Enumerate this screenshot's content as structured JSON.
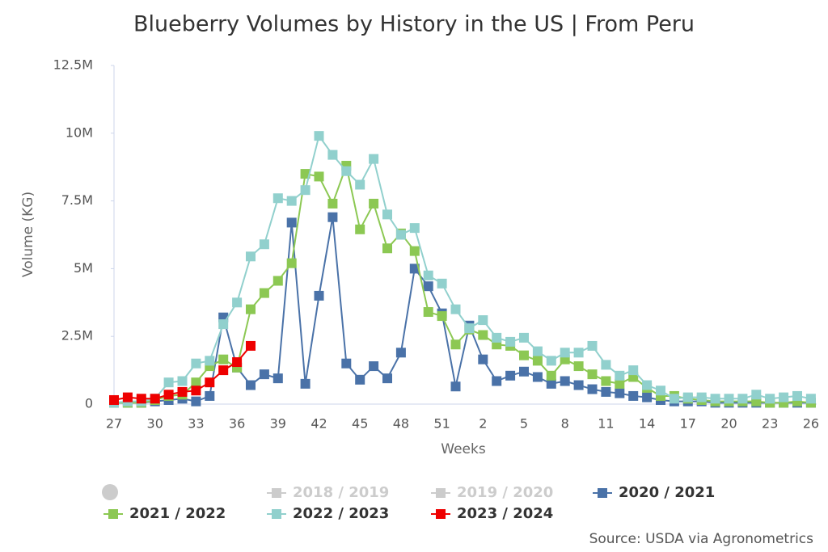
{
  "chart_data": {
    "type": "line",
    "title": "Blueberry Volumes by History in the US | From Peru",
    "x_label": "Weeks",
    "y_label": "Volume (KG)",
    "source": "Source: USDA via Agronometrics",
    "categories": [
      "27",
      null,
      null,
      "30",
      null,
      null,
      "33",
      null,
      null,
      "36",
      null,
      null,
      "39",
      null,
      null,
      "42",
      null,
      null,
      "45",
      null,
      null,
      "48",
      null,
      null,
      "51",
      null,
      null,
      "2",
      null,
      null,
      "5",
      null,
      null,
      "8",
      null,
      null,
      "11",
      null,
      null,
      "14",
      null,
      null,
      "17",
      null,
      null,
      "20",
      null,
      null,
      "23",
      null,
      null,
      "26"
    ],
    "ylim": [
      0,
      12500000
    ],
    "yticks": [
      0,
      {
        "value": 2500000,
        "label": "2.5M"
      },
      {
        "value": 5000000,
        "label": "5M"
      },
      {
        "value": 7500000,
        "label": "7.5M"
      },
      {
        "value": 10000000,
        "label": "10M"
      },
      {
        "value": 12500000,
        "label": "12.5M"
      }
    ],
    "grid": false,
    "series": [
      {
        "name": "2018 / 2019",
        "color": "#cccccc",
        "hidden": true
      },
      {
        "name": "2019 / 2020",
        "color": "#cccccc",
        "hidden": true
      },
      {
        "name": "2020 / 2021",
        "color": "#4a72a8",
        "values": [
          50000,
          50000,
          50000,
          100000,
          150000,
          200000,
          100000,
          300000,
          3200000,
          1350000,
          700000,
          1100000,
          950000,
          6700000,
          750000,
          4000000,
          6900000,
          1500000,
          900000,
          1400000,
          950000,
          1900000,
          5000000,
          4350000,
          3350000,
          650000,
          2900000,
          1650000,
          850000,
          1050000,
          1200000,
          1000000,
          750000,
          850000,
          700000,
          550000,
          450000,
          400000,
          300000,
          250000,
          150000,
          100000,
          100000,
          100000,
          50000,
          50000,
          50000,
          50000,
          50000,
          50000,
          50000,
          50000
        ]
      },
      {
        "name": "2021 / 2022",
        "color": "#8cc853",
        "values": [
          50000,
          50000,
          50000,
          150000,
          300000,
          350000,
          800000,
          1400000,
          1650000,
          1350000,
          3500000,
          4100000,
          4550000,
          5200000,
          8500000,
          8400000,
          7400000,
          8800000,
          6450000,
          7400000,
          5750000,
          6300000,
          5650000,
          3400000,
          3250000,
          2200000,
          2750000,
          2550000,
          2200000,
          2150000,
          1800000,
          1600000,
          1050000,
          1650000,
          1400000,
          1100000,
          850000,
          750000,
          1000000,
          600000,
          300000,
          300000,
          200000,
          150000,
          100000,
          100000,
          100000,
          100000,
          50000,
          50000,
          100000,
          50000
        ]
      },
      {
        "name": "2022 / 2023",
        "color": "#91d0cd",
        "values": [
          50000,
          100000,
          100000,
          200000,
          800000,
          850000,
          1500000,
          1600000,
          2950000,
          3750000,
          5450000,
          5900000,
          7600000,
          7500000,
          7900000,
          9900000,
          9200000,
          8600000,
          8100000,
          9050000,
          7000000,
          6250000,
          6500000,
          4750000,
          4450000,
          3500000,
          2800000,
          3100000,
          2450000,
          2300000,
          2450000,
          1950000,
          1600000,
          1900000,
          1900000,
          2150000,
          1450000,
          1050000,
          1250000,
          700000,
          500000,
          200000,
          250000,
          250000,
          200000,
          200000,
          200000,
          350000,
          200000,
          250000,
          300000,
          200000
        ]
      },
      {
        "name": "2023 / 2024",
        "color": "#ee0000",
        "values": [
          150000,
          250000,
          200000,
          200000,
          350000,
          450000,
          500000,
          800000,
          1250000,
          1550000,
          2150000,
          null,
          null,
          null,
          null,
          null,
          null,
          null,
          null,
          null,
          null,
          null,
          null,
          null,
          null,
          null,
          null,
          null,
          null,
          null,
          null,
          null,
          null,
          null,
          null,
          null,
          null,
          null,
          null,
          null,
          null,
          null,
          null,
          null,
          null,
          null,
          null,
          null,
          null,
          null,
          null,
          null
        ]
      }
    ]
  }
}
